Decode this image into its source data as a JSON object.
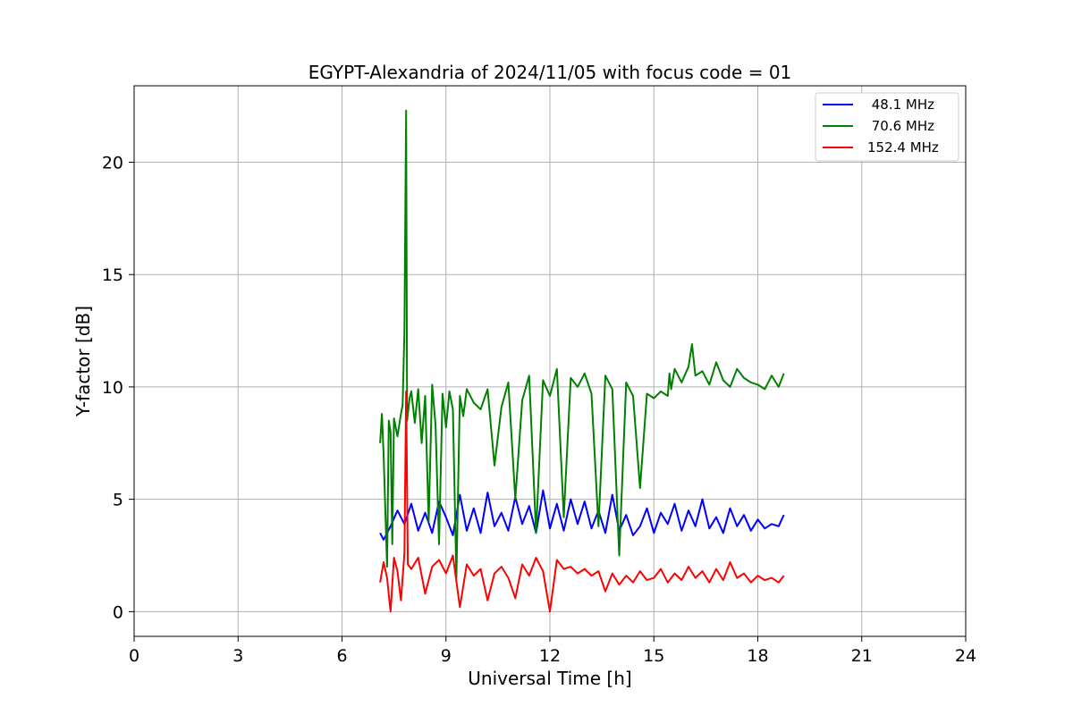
{
  "chart_data": {
    "type": "line",
    "title": "EGYPT-Alexandria of 2024/11/05 with focus code = 01",
    "xlabel": "Universal Time [h]",
    "ylabel": "Y-factor [dB]",
    "xlim": [
      0,
      24
    ],
    "ylim": [
      -1.1,
      23.4
    ],
    "xticks": [
      0,
      3,
      6,
      9,
      12,
      15,
      18,
      21,
      24
    ],
    "yticks": [
      0,
      5,
      10,
      15,
      20
    ],
    "grid": true,
    "legend_position": "top-right",
    "series": [
      {
        "name": " 48.1 MHz",
        "color": "#0000ff",
        "x": [
          7.1,
          7.2,
          7.4,
          7.6,
          7.8,
          8.0,
          8.2,
          8.4,
          8.6,
          8.8,
          9.0,
          9.2,
          9.4,
          9.6,
          9.8,
          10.0,
          10.2,
          10.4,
          10.6,
          10.8,
          11.0,
          11.2,
          11.4,
          11.6,
          11.8,
          12.0,
          12.2,
          12.4,
          12.6,
          12.8,
          13.0,
          13.2,
          13.4,
          13.6,
          13.8,
          14.0,
          14.2,
          14.4,
          14.6,
          14.8,
          15.0,
          15.2,
          15.4,
          15.6,
          15.8,
          16.0,
          16.2,
          16.4,
          16.6,
          16.8,
          17.0,
          17.2,
          17.4,
          17.6,
          17.8,
          18.0,
          18.2,
          18.4,
          18.6,
          18.75
        ],
        "y": [
          3.5,
          3.2,
          3.8,
          4.5,
          3.9,
          4.8,
          3.6,
          4.4,
          3.5,
          4.9,
          4.2,
          3.4,
          5.2,
          3.6,
          4.6,
          3.5,
          5.3,
          3.8,
          4.4,
          3.6,
          5.1,
          3.9,
          4.7,
          3.5,
          5.4,
          3.7,
          4.8,
          3.6,
          5.0,
          3.9,
          4.9,
          3.7,
          4.5,
          3.5,
          5.2,
          3.6,
          4.3,
          3.4,
          3.8,
          4.6,
          3.5,
          4.4,
          3.9,
          4.8,
          3.6,
          4.5,
          3.8,
          5.0,
          3.7,
          4.2,
          3.5,
          4.6,
          3.8,
          4.3,
          3.6,
          4.1,
          3.7,
          3.9,
          3.8,
          4.3
        ]
      },
      {
        "name": " 70.6 MHz",
        "color": "#008000",
        "x": [
          7.1,
          7.15,
          7.2,
          7.3,
          7.35,
          7.4,
          7.45,
          7.5,
          7.6,
          7.7,
          7.75,
          7.8,
          7.85,
          7.88,
          7.9,
          7.95,
          8.0,
          8.1,
          8.2,
          8.3,
          8.4,
          8.5,
          8.6,
          8.7,
          8.8,
          8.9,
          9.0,
          9.1,
          9.2,
          9.3,
          9.4,
          9.5,
          9.6,
          9.8,
          10.0,
          10.2,
          10.4,
          10.6,
          10.8,
          11.0,
          11.2,
          11.4,
          11.6,
          11.8,
          12.0,
          12.2,
          12.4,
          12.6,
          12.8,
          13.0,
          13.2,
          13.4,
          13.6,
          13.8,
          14.0,
          14.2,
          14.4,
          14.6,
          14.8,
          15.0,
          15.2,
          15.4,
          15.45,
          15.5,
          15.6,
          15.8,
          16.0,
          16.1,
          16.2,
          16.4,
          16.6,
          16.8,
          17.0,
          17.2,
          17.4,
          17.6,
          17.8,
          18.0,
          18.2,
          18.4,
          18.6,
          18.75
        ],
        "y": [
          7.5,
          8.8,
          7.0,
          2.0,
          8.5,
          8.0,
          3.0,
          8.6,
          7.8,
          8.8,
          9.2,
          12.5,
          22.3,
          8.5,
          8.8,
          9.5,
          9.8,
          8.4,
          9.9,
          7.5,
          9.6,
          4.0,
          10.1,
          8.3,
          3.0,
          9.7,
          8.2,
          9.8,
          9.0,
          1.5,
          9.6,
          8.7,
          9.9,
          9.3,
          9.0,
          9.9,
          6.5,
          9.1,
          10.2,
          5.0,
          9.4,
          10.5,
          3.5,
          10.3,
          9.6,
          10.8,
          4.2,
          10.4,
          10.0,
          10.6,
          9.7,
          3.8,
          10.5,
          9.9,
          2.5,
          10.2,
          9.6,
          5.5,
          9.7,
          9.5,
          9.8,
          9.6,
          10.6,
          9.9,
          10.8,
          10.2,
          10.9,
          11.9,
          10.5,
          10.7,
          10.1,
          11.1,
          10.3,
          10.0,
          10.8,
          10.4,
          10.2,
          10.1,
          9.9,
          10.5,
          10.0,
          10.6
        ]
      },
      {
        "name": "152.4 MHz",
        "color": "#ff0000",
        "x": [
          7.1,
          7.2,
          7.3,
          7.4,
          7.5,
          7.6,
          7.7,
          7.8,
          7.85,
          7.9,
          8.0,
          8.2,
          8.4,
          8.6,
          8.8,
          9.0,
          9.2,
          9.4,
          9.6,
          9.8,
          10.0,
          10.2,
          10.4,
          10.6,
          10.8,
          11.0,
          11.2,
          11.4,
          11.6,
          11.8,
          12.0,
          12.2,
          12.4,
          12.6,
          12.8,
          13.0,
          13.2,
          13.4,
          13.6,
          13.8,
          14.0,
          14.2,
          14.4,
          14.6,
          14.8,
          15.0,
          15.2,
          15.4,
          15.6,
          15.8,
          16.0,
          16.2,
          16.4,
          16.6,
          16.8,
          17.0,
          17.2,
          17.4,
          17.6,
          17.8,
          18.0,
          18.2,
          18.4,
          18.6,
          18.75
        ],
        "y": [
          1.3,
          2.2,
          1.5,
          0.0,
          2.4,
          1.8,
          0.5,
          2.6,
          9.8,
          2.1,
          1.9,
          2.4,
          0.8,
          2.0,
          2.3,
          1.7,
          2.5,
          0.2,
          2.1,
          1.6,
          1.9,
          0.5,
          1.7,
          2.0,
          1.5,
          0.6,
          2.1,
          1.6,
          2.4,
          1.8,
          0.0,
          2.3,
          1.9,
          2.0,
          1.7,
          1.9,
          1.6,
          1.8,
          0.9,
          1.7,
          1.2,
          1.6,
          1.3,
          1.8,
          1.4,
          1.5,
          1.9,
          1.3,
          1.7,
          1.4,
          2.0,
          1.5,
          1.8,
          1.3,
          1.9,
          1.4,
          2.2,
          1.5,
          1.7,
          1.3,
          1.6,
          1.4,
          1.5,
          1.3,
          1.6
        ]
      }
    ]
  }
}
